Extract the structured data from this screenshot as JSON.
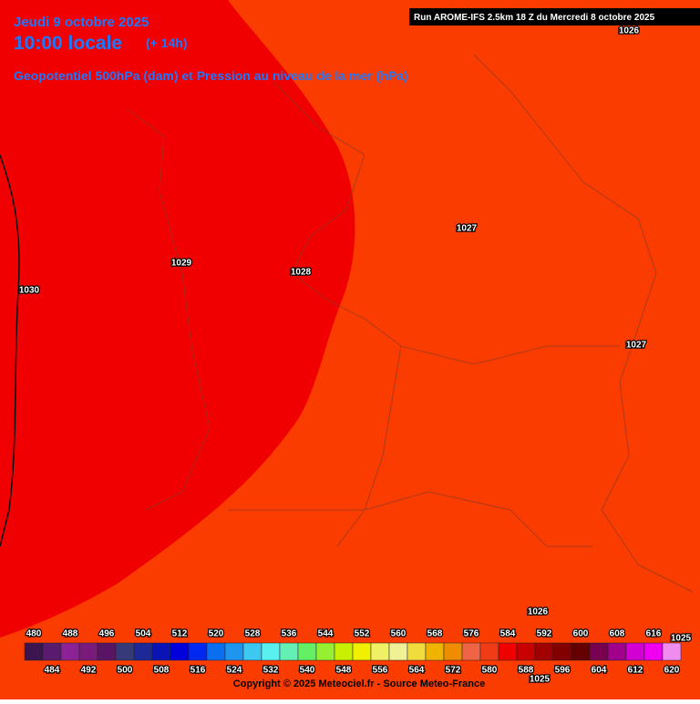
{
  "header": {
    "date": "Jeudi 9 octobre 2025",
    "time": "10:00 locale",
    "offset": "(+ 14h)",
    "product": "Geopotentiel 500hPa (dam) et Pression au niveau de la mer (hPa)",
    "run": "Run AROME-IFS 2.5km 18 Z du Mercredi 8 octobre 2025"
  },
  "isobars": [
    1026,
    1027,
    1028,
    1029,
    1030,
    1027,
    1026,
    1025,
    1025
  ],
  "scale": {
    "values": [
      480,
      484,
      488,
      492,
      496,
      500,
      504,
      508,
      512,
      516,
      520,
      524,
      528,
      532,
      536,
      540,
      544,
      548,
      552,
      556,
      560,
      564,
      568,
      572,
      576,
      580,
      584,
      588,
      592,
      596,
      600,
      604,
      608,
      612,
      616,
      620
    ],
    "colors": [
      "#3c1450",
      "#5a1a6e",
      "#8c2296",
      "#7a1a7a",
      "#5a1464",
      "#363a78",
      "#1e2896",
      "#0a14b4",
      "#0000dc",
      "#0028f0",
      "#0a6ef0",
      "#1e96f0",
      "#3cc8f0",
      "#5af0f0",
      "#64f0b4",
      "#64f064",
      "#96f032",
      "#c8f000",
      "#f0f000",
      "#f0f064",
      "#f0f096",
      "#f0dc3c",
      "#f0b400",
      "#f08c00",
      "#f06446",
      "#f03c14",
      "#f00000",
      "#c80000",
      "#a00000",
      "#820000",
      "#640000",
      "#780050",
      "#a0008c",
      "#d200d2",
      "#f000f0",
      "#f08cf0"
    ]
  },
  "footer": "Copyright © 2025 Meteociel.fr - Source Meteo-France"
}
